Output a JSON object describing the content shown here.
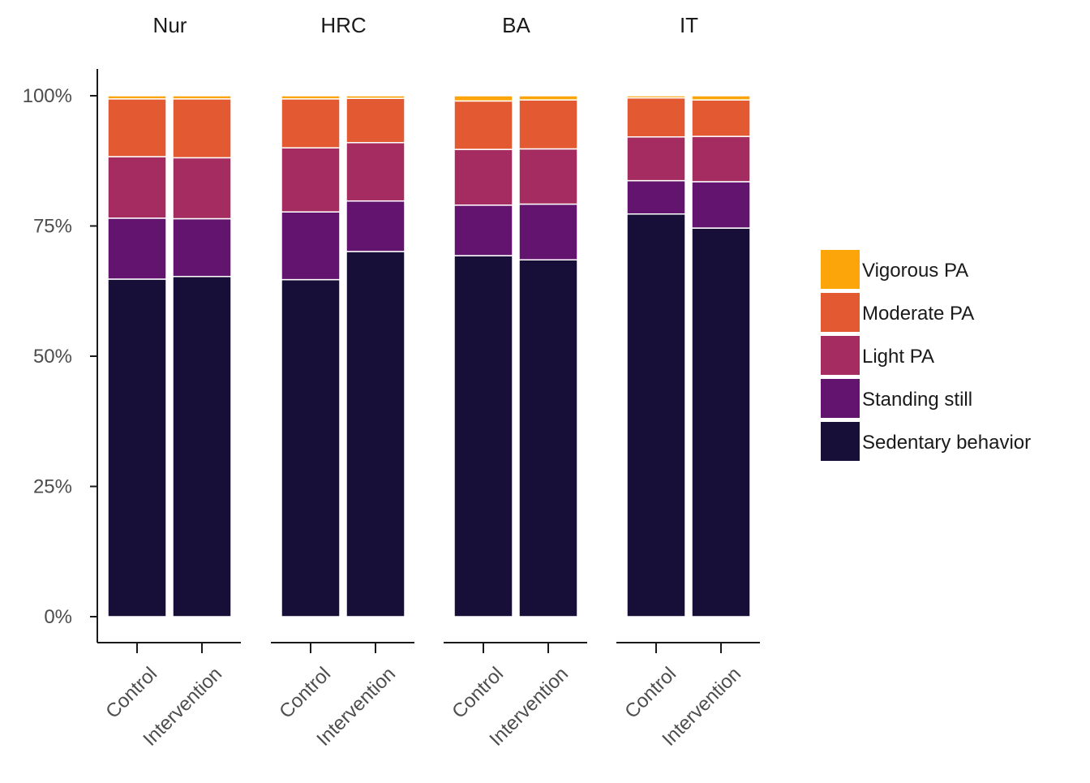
{
  "chart_data": {
    "type": "bar",
    "stacked": true,
    "normalized": true,
    "facets": [
      "Nur",
      "HRC",
      "BA",
      "IT"
    ],
    "categories": [
      "Control",
      "Intervention"
    ],
    "yticks": [
      "0%",
      "25%",
      "50%",
      "75%",
      "100%"
    ],
    "ylim": [
      0,
      1
    ],
    "grid": false,
    "legend_position": "right",
    "series": [
      {
        "name": "Sedentary behavior",
        "color": "#170F38",
        "values": [
          [
            0.648,
            0.653
          ],
          [
            0.647,
            0.701
          ],
          [
            0.693,
            0.685
          ],
          [
            0.773,
            0.746
          ]
        ]
      },
      {
        "name": "Standing still",
        "color": "#62146E",
        "values": [
          [
            0.117,
            0.111
          ],
          [
            0.13,
            0.097
          ],
          [
            0.097,
            0.107
          ],
          [
            0.064,
            0.089
          ]
        ]
      },
      {
        "name": "Light PA",
        "color": "#A52C60",
        "values": [
          [
            0.118,
            0.117
          ],
          [
            0.123,
            0.112
          ],
          [
            0.107,
            0.106
          ],
          [
            0.084,
            0.087
          ]
        ]
      },
      {
        "name": "Moderate PA",
        "color": "#E35932",
        "values": [
          [
            0.111,
            0.113
          ],
          [
            0.094,
            0.085
          ],
          [
            0.093,
            0.094
          ],
          [
            0.075,
            0.07
          ]
        ]
      },
      {
        "name": "Vigorous PA",
        "color": "#FCA50A",
        "values": [
          [
            0.006,
            0.006
          ],
          [
            0.006,
            0.005
          ],
          [
            0.01,
            0.008
          ],
          [
            0.004,
            0.008
          ]
        ]
      }
    ]
  }
}
